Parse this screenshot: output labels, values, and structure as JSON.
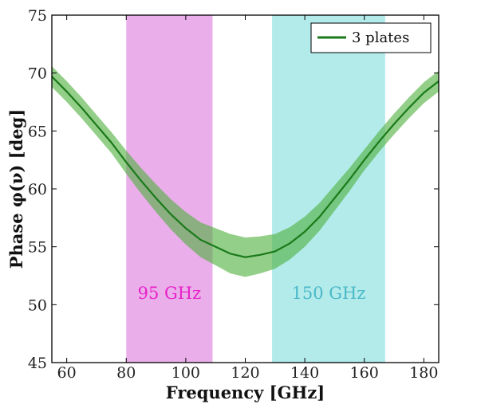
{
  "chart_data": {
    "type": "line",
    "xlabel": "Frequency [GHz]",
    "ylabel": "Phase φ(ν) [deg]",
    "xlim": [
      55,
      185
    ],
    "ylim": [
      45,
      75
    ],
    "xticks": [
      60,
      80,
      100,
      120,
      140,
      160,
      180
    ],
    "yticks": [
      45,
      50,
      55,
      60,
      65,
      70,
      75
    ],
    "grid": false,
    "legend_position": "top-right",
    "bands": [
      {
        "label": "95 GHz",
        "x_start": 80,
        "x_end": 109,
        "color": "#e6a0e6",
        "label_color": "#e820c8",
        "label_y": 51
      },
      {
        "label": "150 GHz",
        "x_start": 129,
        "x_end": 167,
        "color": "#a6e8e8",
        "label_color": "#4ab8c8",
        "label_y": 51
      }
    ],
    "series": [
      {
        "name": "3 plates",
        "color": "#1a7a1a",
        "band_color": "#4caf3a",
        "x": [
          55,
          60,
          65,
          70,
          75,
          80,
          85,
          90,
          95,
          100,
          105,
          110,
          115,
          120,
          125,
          130,
          135,
          140,
          145,
          150,
          155,
          160,
          165,
          170,
          175,
          180,
          185
        ],
        "y": [
          69.7,
          68.4,
          67.0,
          65.5,
          64.0,
          62.3,
          60.7,
          59.2,
          57.8,
          56.6,
          55.6,
          55.0,
          54.4,
          54.1,
          54.3,
          54.6,
          55.3,
          56.3,
          57.6,
          59.2,
          60.8,
          62.5,
          64.1,
          65.6,
          67.0,
          68.3,
          69.3
        ],
        "err": [
          0.9,
          0.9,
          0.9,
          0.9,
          0.9,
          1.0,
          1.1,
          1.2,
          1.3,
          1.4,
          1.5,
          1.6,
          1.7,
          1.7,
          1.6,
          1.5,
          1.4,
          1.3,
          1.2,
          1.1,
          1.0,
          0.9,
          0.9,
          0.9,
          0.9,
          0.9,
          0.9
        ]
      }
    ]
  }
}
